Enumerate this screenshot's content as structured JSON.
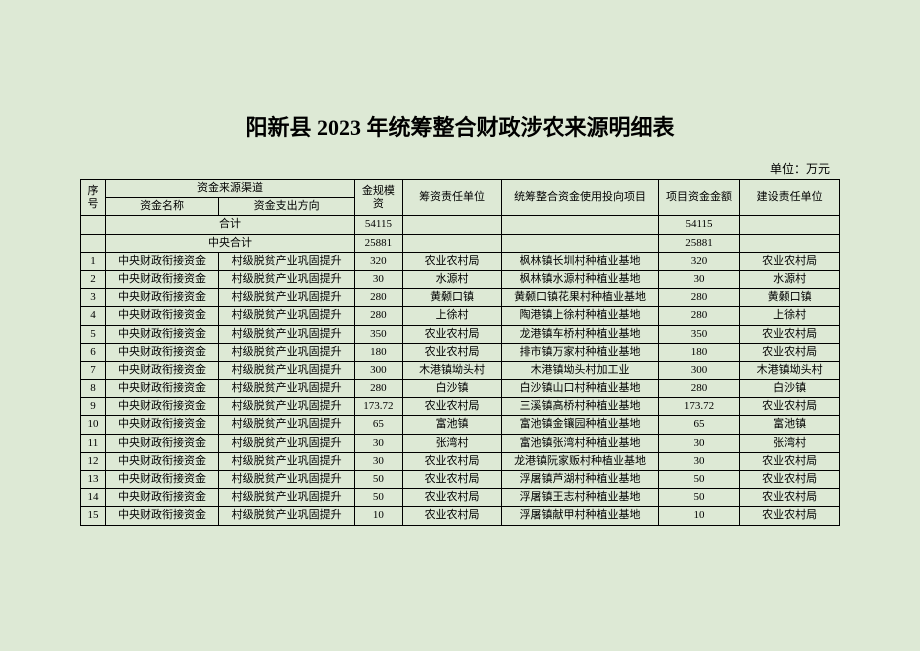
{
  "title": "阳新县 2023 年统筹整合财政涉农来源明细表",
  "unit_label": "单位：万元",
  "headers": {
    "seq": "序号",
    "source_channel": "资金来源渠道",
    "fund_name": "资金名称",
    "fund_direction": "资金支出方向",
    "fund_scale": "金规模资",
    "raise_unit": "筹资责任单位",
    "project": "统筹整合资金使用投向项目",
    "project_amount": "项目资金金额",
    "build_unit": "建设责任单位"
  },
  "totals": {
    "grand_label": "合计",
    "grand_amount": "54115",
    "grand_pamount": "54115",
    "central_label": "中央合计",
    "central_amount": "25881",
    "central_pamount": "25881"
  },
  "rows": [
    {
      "seq": "1",
      "name": "中央财政衔接资金",
      "dir": "村级脱贫产业巩固提升",
      "amt": "320",
      "resp": "农业农村局",
      "proj": "枫林镇长圳村种植业基地",
      "pamt": "320",
      "build": "农业农村局"
    },
    {
      "seq": "2",
      "name": "中央财政衔接资金",
      "dir": "村级脱贫产业巩固提升",
      "amt": "30",
      "resp": "水源村",
      "proj": "枫林镇水源村种植业基地",
      "pamt": "30",
      "build": "水源村"
    },
    {
      "seq": "3",
      "name": "中央财政衔接资金",
      "dir": "村级脱贫产业巩固提升",
      "amt": "280",
      "resp": "黄颡口镇",
      "proj": "黄颡口镇花果村种植业基地",
      "pamt": "280",
      "build": "黄颡口镇"
    },
    {
      "seq": "4",
      "name": "中央财政衔接资金",
      "dir": "村级脱贫产业巩固提升",
      "amt": "280",
      "resp": "上徐村",
      "proj": "陶港镇上徐村种植业基地",
      "pamt": "280",
      "build": "上徐村"
    },
    {
      "seq": "5",
      "name": "中央财政衔接资金",
      "dir": "村级脱贫产业巩固提升",
      "amt": "350",
      "resp": "农业农村局",
      "proj": "龙港镇车桥村种植业基地",
      "pamt": "350",
      "build": "农业农村局"
    },
    {
      "seq": "6",
      "name": "中央财政衔接资金",
      "dir": "村级脱贫产业巩固提升",
      "amt": "180",
      "resp": "农业农村局",
      "proj": "排市镇万家村种植业基地",
      "pamt": "180",
      "build": "农业农村局"
    },
    {
      "seq": "7",
      "name": "中央财政衔接资金",
      "dir": "村级脱贫产业巩固提升",
      "amt": "300",
      "resp": "木港镇坳头村",
      "proj": "木港镇坳头村加工业",
      "pamt": "300",
      "build": "木港镇坳头村"
    },
    {
      "seq": "8",
      "name": "中央财政衔接资金",
      "dir": "村级脱贫产业巩固提升",
      "amt": "280",
      "resp": "白沙镇",
      "proj": "白沙镇山口村种植业基地",
      "pamt": "280",
      "build": "白沙镇"
    },
    {
      "seq": "9",
      "name": "中央财政衔接资金",
      "dir": "村级脱贫产业巩固提升",
      "amt": "173.72",
      "resp": "农业农村局",
      "proj": "三溪镇高桥村种植业基地",
      "pamt": "173.72",
      "build": "农业农村局"
    },
    {
      "seq": "10",
      "name": "中央财政衔接资金",
      "dir": "村级脱贫产业巩固提升",
      "amt": "65",
      "resp": "富池镇",
      "proj": "富池镇金镶园种植业基地",
      "pamt": "65",
      "build": "富池镇"
    },
    {
      "seq": "11",
      "name": "中央财政衔接资金",
      "dir": "村级脱贫产业巩固提升",
      "amt": "30",
      "resp": "张湾村",
      "proj": "富池镇张湾村种植业基地",
      "pamt": "30",
      "build": "张湾村"
    },
    {
      "seq": "12",
      "name": "中央财政衔接资金",
      "dir": "村级脱贫产业巩固提升",
      "amt": "30",
      "resp": "农业农村局",
      "proj": "龙港镇阮家贩村种植业基地",
      "pamt": "30",
      "build": "农业农村局"
    },
    {
      "seq": "13",
      "name": "中央财政衔接资金",
      "dir": "村级脱贫产业巩固提升",
      "amt": "50",
      "resp": "农业农村局",
      "proj": "浮屠镇芦湖村种植业基地",
      "pamt": "50",
      "build": "农业农村局"
    },
    {
      "seq": "14",
      "name": "中央财政衔接资金",
      "dir": "村级脱贫产业巩固提升",
      "amt": "50",
      "resp": "农业农村局",
      "proj": "浮屠镇王志村种植业基地",
      "pamt": "50",
      "build": "农业农村局"
    },
    {
      "seq": "15",
      "name": "中央财政衔接资金",
      "dir": "村级脱贫产业巩固提升",
      "amt": "10",
      "resp": "农业农村局",
      "proj": "浮屠镇献甲村种植业基地",
      "pamt": "10",
      "build": "农业农村局"
    }
  ]
}
